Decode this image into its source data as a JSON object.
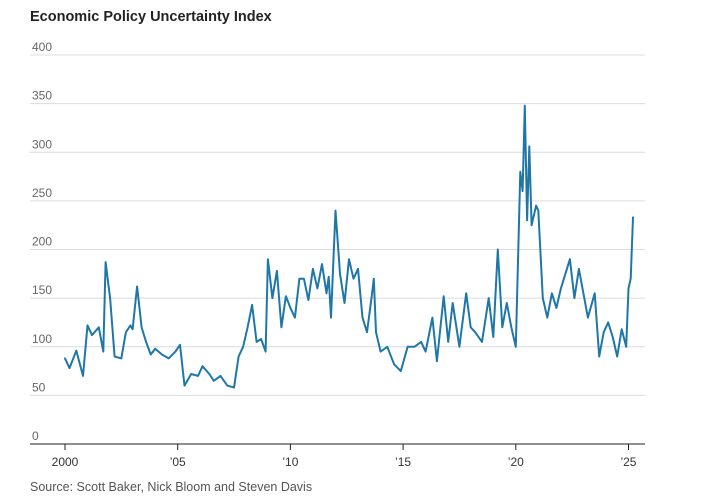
{
  "title": "Economic Policy Uncertainty Index",
  "source": "Source: Scott Baker, Nick Bloom and Steven Davis",
  "chart_data": {
    "type": "line",
    "title": "Economic Policy Uncertainty Index",
    "xlabel": "",
    "ylabel": "",
    "ylim": [
      0,
      400
    ],
    "y_ticks": [
      "0",
      "50",
      "100",
      "150",
      "200",
      "250",
      "300",
      "350",
      "400"
    ],
    "x_ticks": [
      {
        "year": 2000,
        "label": "2000"
      },
      {
        "year": 2005,
        "label": "’05"
      },
      {
        "year": 2010,
        "label": "’10"
      },
      {
        "year": 2015,
        "label": "’15"
      },
      {
        "year": 2020,
        "label": "’20"
      },
      {
        "year": 2025,
        "label": "’25"
      }
    ],
    "grid": "horizontal",
    "color": "#1f77a8",
    "series": [
      {
        "x": [
          2000.0,
          2000.2,
          2000.5,
          2000.8,
          2001.0,
          2001.2,
          2001.5,
          2001.7,
          2001.8,
          2002.0,
          2002.2,
          2002.5,
          2002.7,
          2002.9,
          2003.0,
          2003.2,
          2003.4,
          2003.6,
          2003.8,
          2004.0,
          2004.3,
          2004.6,
          2004.9,
          2005.1,
          2005.3,
          2005.6,
          2005.9,
          2006.1,
          2006.4,
          2006.6,
          2006.9,
          2007.2,
          2007.5,
          2007.7,
          2007.9,
          2008.1,
          2008.3,
          2008.5,
          2008.7,
          2008.9,
          2009.0,
          2009.2,
          2009.4,
          2009.6,
          2009.8,
          2010.0,
          2010.2,
          2010.4,
          2010.6,
          2010.8,
          2011.0,
          2011.2,
          2011.4,
          2011.6,
          2011.7,
          2011.8,
          2012.0,
          2012.2,
          2012.4,
          2012.6,
          2012.8,
          2013.0,
          2013.2,
          2013.4,
          2013.6,
          2013.7,
          2013.8,
          2014.0,
          2014.3,
          2014.6,
          2014.9,
          2015.2,
          2015.5,
          2015.8,
          2016.0,
          2016.3,
          2016.5,
          2016.8,
          2017.0,
          2017.2,
          2017.5,
          2017.8,
          2018.0,
          2018.2,
          2018.5,
          2018.8,
          2019.0,
          2019.2,
          2019.4,
          2019.6,
          2019.8,
          2020.0,
          2020.2,
          2020.3,
          2020.4,
          2020.5,
          2020.6,
          2020.7,
          2020.9,
          2021.0,
          2021.2,
          2021.4,
          2021.6,
          2021.8,
          2022.0,
          2022.2,
          2022.4,
          2022.6,
          2022.8,
          2023.0,
          2023.2,
          2023.5,
          2023.7,
          2023.9,
          2024.1,
          2024.3,
          2024.5,
          2024.7,
          2024.9,
          2025.0,
          2025.1,
          2025.2
        ],
        "y": [
          88,
          78,
          96,
          70,
          122,
          112,
          120,
          95,
          187,
          150,
          90,
          88,
          115,
          122,
          118,
          162,
          120,
          105,
          92,
          98,
          92,
          88,
          95,
          102,
          60,
          72,
          70,
          80,
          72,
          65,
          70,
          60,
          58,
          90,
          100,
          120,
          143,
          105,
          108,
          95,
          190,
          150,
          178,
          120,
          152,
          140,
          130,
          170,
          170,
          148,
          180,
          160,
          185,
          155,
          172,
          130,
          240,
          175,
          145,
          190,
          170,
          180,
          130,
          115,
          150,
          170,
          115,
          95,
          100,
          82,
          75,
          100,
          100,
          105,
          95,
          130,
          85,
          152,
          105,
          145,
          100,
          155,
          120,
          115,
          105,
          150,
          110,
          200,
          120,
          145,
          120,
          100,
          280,
          260,
          348,
          230,
          306,
          225,
          245,
          240,
          150,
          130,
          155,
          140,
          160,
          175,
          190,
          150,
          180,
          155,
          130,
          155,
          90,
          115,
          125,
          110,
          90,
          118,
          100,
          160,
          170,
          233
        ]
      }
    ]
  }
}
